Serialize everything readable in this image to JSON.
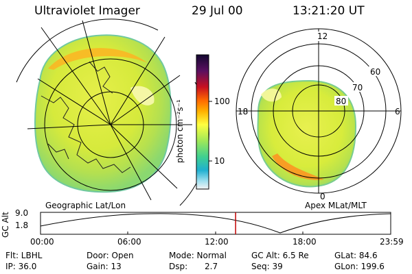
{
  "header": {
    "instrument": "Ultraviolet Imager",
    "date": "29 Jul 00",
    "time": "13:21:20 UT"
  },
  "colorbar": {
    "label": "photon cm⁻²s⁻¹",
    "ticks": [
      "100",
      "10"
    ],
    "colors": [
      "#1a0a3c",
      "#6a1060",
      "#c81020",
      "#ff6a00",
      "#ffb000",
      "#ffff40",
      "#a8e860",
      "#40d090",
      "#20b0d0",
      "#a0e0f0",
      "#f0f0f0"
    ]
  },
  "left_map": {
    "caption": "Geographic Lat/Lon"
  },
  "right_map": {
    "caption": "Apex MLat/MLT",
    "mlt_labels": [
      "12",
      "18",
      "6",
      "0"
    ],
    "mlat_labels": [
      "60",
      "70",
      "80"
    ]
  },
  "altitude_plot": {
    "ylabel": "GC Alt",
    "yticks": [
      "9.0",
      "1.8"
    ],
    "xticks": [
      "00:00",
      "06:00",
      "12:00",
      "18:00",
      "23:59"
    ],
    "current_time_hour": 13.36,
    "marker_color": "#c00000"
  },
  "info": {
    "flt": "Flt: LBHL",
    "ip": "IP: 36.0",
    "door": "Door: Open",
    "gain": "Gain: 13",
    "mode": "Mode: Normal",
    "dsp_label": "Dsp:",
    "dsp_value": "2.7",
    "gc_alt": "GC Alt: 6.5 Re",
    "seq": "Seq: 39",
    "glat": "GLat:  84.6",
    "glon": "GLon: 199.6"
  }
}
